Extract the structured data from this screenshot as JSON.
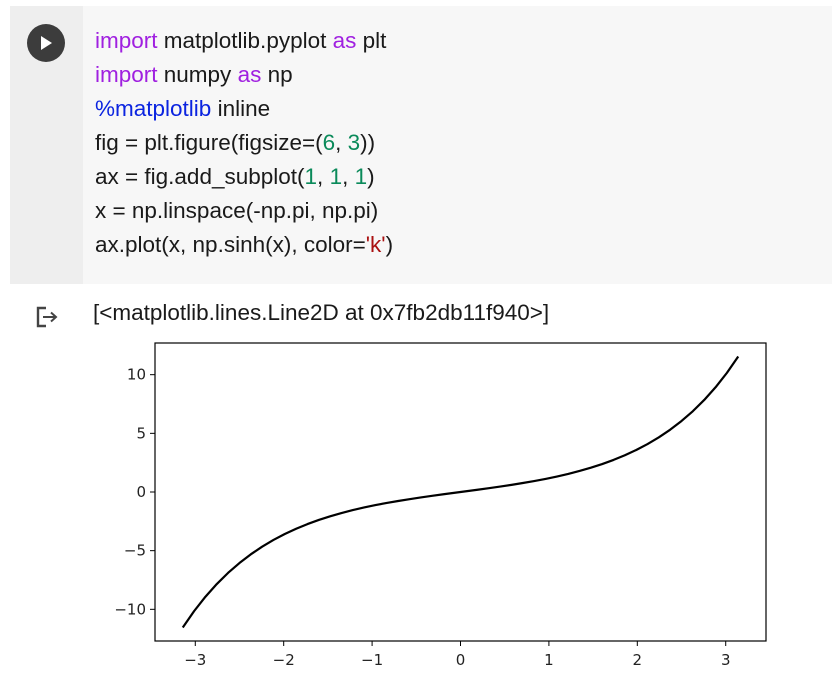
{
  "cell": {
    "run_icon": "play-icon",
    "code_lines": [
      [
        {
          "t": "import",
          "c": "kw"
        },
        {
          "t": " matplotlib.pyplot ",
          "c": ""
        },
        {
          "t": "as",
          "c": "kw"
        },
        {
          "t": " plt",
          "c": ""
        }
      ],
      [
        {
          "t": "import",
          "c": "kw"
        },
        {
          "t": " numpy ",
          "c": ""
        },
        {
          "t": "as",
          "c": "kw"
        },
        {
          "t": " np",
          "c": ""
        }
      ],
      [
        {
          "t": "%matplotlib",
          "c": "mg"
        },
        {
          "t": " inline",
          "c": ""
        }
      ],
      [
        {
          "t": "fig = plt.figure(figsize=(",
          "c": ""
        },
        {
          "t": "6",
          "c": "num"
        },
        {
          "t": ", ",
          "c": ""
        },
        {
          "t": "3",
          "c": "num"
        },
        {
          "t": "))",
          "c": ""
        }
      ],
      [
        {
          "t": "ax = fig.add_subplot(",
          "c": ""
        },
        {
          "t": "1",
          "c": "num"
        },
        {
          "t": ", ",
          "c": ""
        },
        {
          "t": "1",
          "c": "num"
        },
        {
          "t": ", ",
          "c": ""
        },
        {
          "t": "1",
          "c": "num"
        },
        {
          "t": ")",
          "c": ""
        }
      ],
      [
        {
          "t": "x = np.linspace(-np.pi, np.pi)",
          "c": ""
        }
      ],
      [
        {
          "t": "ax.plot(x, np.sinh(x), color=",
          "c": ""
        },
        {
          "t": "'k'",
          "c": "str"
        },
        {
          "t": ")",
          "c": ""
        }
      ]
    ]
  },
  "output": {
    "icon": "output-arrow-icon",
    "text": "[<matplotlib.lines.Line2D at 0x7fb2db11f940>]"
  },
  "chart_data": {
    "type": "line",
    "function": "sinh",
    "x_range": [
      -3.14159,
      3.14159
    ],
    "num_points": 50,
    "line_color": "#000000",
    "xlim": [
      -3.4557,
      3.4557
    ],
    "ylim": [
      -12.7,
      12.7
    ],
    "x_ticks": [
      -3,
      -2,
      -1,
      0,
      1,
      2,
      3
    ],
    "x_tick_labels": [
      "−3",
      "−2",
      "−1",
      "0",
      "1",
      "2",
      "3"
    ],
    "y_ticks": [
      10,
      5,
      0,
      -5,
      -10
    ],
    "y_tick_labels": [
      "10",
      "5",
      "0",
      "−5",
      "−10"
    ],
    "grid": false,
    "xlabel": "",
    "ylabel": "",
    "title": ""
  }
}
